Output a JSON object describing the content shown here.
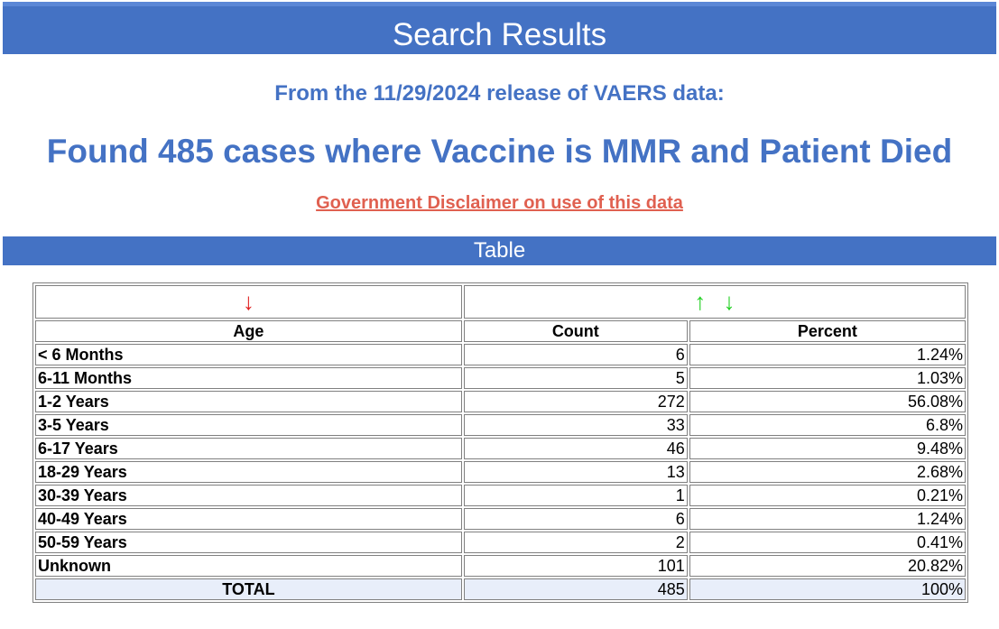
{
  "header": {
    "title": "Search Results"
  },
  "release_line": "From the 11/29/2024 release of VAERS data:",
  "summary_line": "Found 485 cases where Vaccine is MMR and Patient Died",
  "disclaimer_link": "Government Disclaimer on use of this data",
  "table_section": {
    "title": "Table"
  },
  "table": {
    "sort_icons": {
      "age": "arrow-down-icon (red)",
      "value": "arrow-up-icon, arrow-down-icon (green)"
    },
    "columns": [
      "Age",
      "Count",
      "Percent"
    ],
    "rows": [
      {
        "age": "< 6 Months",
        "count": "6",
        "percent": "1.24%"
      },
      {
        "age": "6-11 Months",
        "count": "5",
        "percent": "1.03%"
      },
      {
        "age": "1-2 Years",
        "count": "272",
        "percent": "56.08%"
      },
      {
        "age": "3-5 Years",
        "count": "33",
        "percent": "6.8%"
      },
      {
        "age": "6-17 Years",
        "count": "46",
        "percent": "9.48%"
      },
      {
        "age": "18-29 Years",
        "count": "13",
        "percent": "2.68%"
      },
      {
        "age": "30-39 Years",
        "count": "1",
        "percent": "0.21%"
      },
      {
        "age": "40-49 Years",
        "count": "6",
        "percent": "1.24%"
      },
      {
        "age": "50-59 Years",
        "count": "2",
        "percent": "0.41%"
      },
      {
        "age": "Unknown",
        "count": "101",
        "percent": "20.82%"
      }
    ],
    "total": {
      "label": "TOTAL",
      "count": "485",
      "percent": "100%"
    }
  },
  "colors": {
    "banner": "#4472c4",
    "heading_text": "#4472c4",
    "disclaimer_link": "#e06050",
    "sort_arrow_active": "#e02020",
    "sort_arrow_inactive": "#22d022",
    "total_row_bg": "#e8eefa"
  }
}
